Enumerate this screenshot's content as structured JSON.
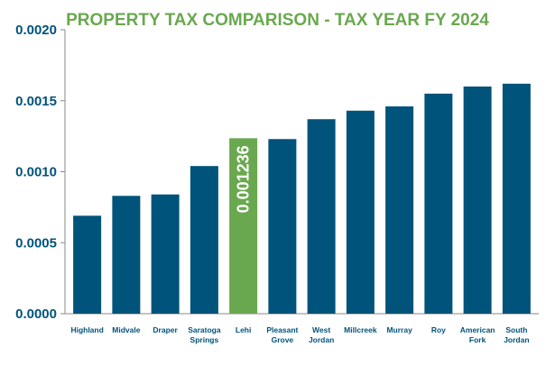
{
  "chart_data": {
    "type": "bar",
    "title": "PROPERTY TAX COMPARISON - TAX YEAR FY 2024",
    "xlabel": "",
    "ylabel": "",
    "ylim": [
      0,
      0.002
    ],
    "yticks": [
      "0.0000",
      "0.0005",
      "0.0010",
      "0.0015",
      "0.0020"
    ],
    "ytick_values": [
      0,
      0.0005,
      0.001,
      0.0015,
      0.002
    ],
    "grid": false,
    "categories": [
      [
        "Highland"
      ],
      [
        "Midvale"
      ],
      [
        "Draper"
      ],
      [
        "Saratoga",
        "Springs"
      ],
      [
        "Lehi"
      ],
      [
        "Pleasant",
        "Grove"
      ],
      [
        "West",
        "Jordan"
      ],
      [
        "Millcreek"
      ],
      [
        "Murray"
      ],
      [
        "Roy"
      ],
      [
        "American",
        "Fork"
      ],
      [
        "South",
        "Jordan"
      ]
    ],
    "values": [
      0.00069,
      0.00083,
      0.00084,
      0.00104,
      0.001236,
      0.00123,
      0.00137,
      0.00143,
      0.00146,
      0.00155,
      0.0016,
      0.00162
    ],
    "highlight_index": 4,
    "highlight_label": "0.001236",
    "colors": {
      "bar": "#00537a",
      "highlight": "#6aa84f",
      "title": "#6aa84f",
      "axis_text": "#00537a",
      "axis_line": "#8a8a8a"
    }
  }
}
